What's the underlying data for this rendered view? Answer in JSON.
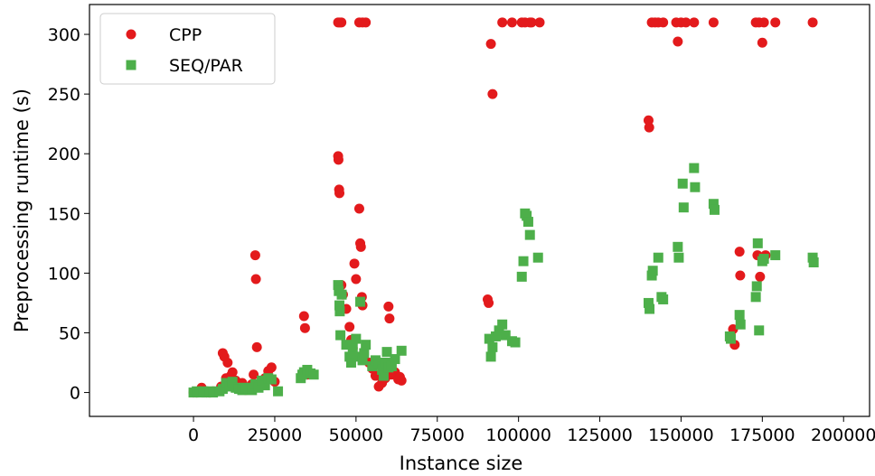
{
  "chart_data": {
    "type": "scatter",
    "title": "",
    "xlabel": "Instance size",
    "ylabel": "Preprocessing runtime (s)",
    "xlim": [
      -32000,
      208000
    ],
    "ylim": [
      -20,
      325
    ],
    "xticks": [
      0,
      25000,
      50000,
      75000,
      100000,
      125000,
      150000,
      175000,
      200000
    ],
    "yticks": [
      0,
      50,
      100,
      150,
      200,
      250,
      300
    ],
    "legend_position": "top-left",
    "grid": false,
    "series": [
      {
        "name": "CPP",
        "marker": "circle",
        "color": "#e31a1c",
        "points": [
          [
            0,
            0
          ],
          [
            1000,
            0
          ],
          [
            2000,
            1
          ],
          [
            2500,
            4
          ],
          [
            3000,
            1
          ],
          [
            4000,
            0
          ],
          [
            5000,
            0
          ],
          [
            6000,
            1
          ],
          [
            8000,
            2
          ],
          [
            8500,
            5
          ],
          [
            9000,
            33
          ],
          [
            9500,
            30
          ],
          [
            10000,
            12
          ],
          [
            10500,
            25
          ],
          [
            11000,
            8
          ],
          [
            11500,
            14
          ],
          [
            12000,
            17
          ],
          [
            12500,
            6
          ],
          [
            13000,
            10
          ],
          [
            14000,
            3
          ],
          [
            15000,
            8
          ],
          [
            16000,
            2
          ],
          [
            17000,
            3
          ],
          [
            18000,
            7
          ],
          [
            18500,
            15
          ],
          [
            19000,
            115
          ],
          [
            19200,
            95
          ],
          [
            19500,
            38
          ],
          [
            20000,
            6
          ],
          [
            21000,
            8
          ],
          [
            22000,
            12
          ],
          [
            23000,
            18
          ],
          [
            24000,
            21
          ],
          [
            25000,
            9
          ],
          [
            34000,
            64
          ],
          [
            34300,
            54
          ],
          [
            35000,
            15
          ],
          [
            44500,
            310
          ],
          [
            45000,
            310
          ],
          [
            45500,
            310
          ],
          [
            44500,
            198
          ],
          [
            44600,
            195
          ],
          [
            44800,
            170
          ],
          [
            44900,
            167
          ],
          [
            45500,
            90
          ],
          [
            46000,
            82
          ],
          [
            47000,
            70
          ],
          [
            48000,
            55
          ],
          [
            48500,
            44
          ],
          [
            49000,
            37
          ],
          [
            49500,
            108
          ],
          [
            50000,
            95
          ],
          [
            51000,
            310
          ],
          [
            52000,
            310
          ],
          [
            53000,
            310
          ],
          [
            51000,
            154
          ],
          [
            51300,
            125
          ],
          [
            51500,
            122
          ],
          [
            51800,
            80
          ],
          [
            52000,
            73
          ],
          [
            54000,
            25
          ],
          [
            55000,
            20
          ],
          [
            56000,
            14
          ],
          [
            57000,
            5
          ],
          [
            58000,
            8
          ],
          [
            59000,
            12
          ],
          [
            60000,
            72
          ],
          [
            60300,
            62
          ],
          [
            61000,
            15
          ],
          [
            62000,
            17
          ],
          [
            63000,
            11
          ],
          [
            63500,
            13
          ],
          [
            64000,
            10
          ],
          [
            90500,
            78
          ],
          [
            90800,
            75
          ],
          [
            91500,
            292
          ],
          [
            92000,
            250
          ],
          [
            95000,
            310
          ],
          [
            98000,
            310
          ],
          [
            101000,
            310
          ],
          [
            102000,
            310
          ],
          [
            103500,
            310
          ],
          [
            104000,
            310
          ],
          [
            106500,
            310
          ],
          [
            140000,
            228
          ],
          [
            140200,
            222
          ],
          [
            141000,
            310
          ],
          [
            142000,
            310
          ],
          [
            143000,
            310
          ],
          [
            144500,
            310
          ],
          [
            148500,
            310
          ],
          [
            149000,
            294
          ],
          [
            150000,
            310
          ],
          [
            151500,
            310
          ],
          [
            154000,
            310
          ],
          [
            160000,
            310
          ],
          [
            166000,
            53
          ],
          [
            166500,
            40
          ],
          [
            168000,
            118
          ],
          [
            168200,
            98
          ],
          [
            173000,
            310
          ],
          [
            173500,
            115
          ],
          [
            174000,
            310
          ],
          [
            174300,
            97
          ],
          [
            175000,
            293
          ],
          [
            175500,
            310
          ],
          [
            176000,
            115
          ],
          [
            179000,
            310
          ],
          [
            190500,
            310
          ]
        ]
      },
      {
        "name": "SEQ/PAR",
        "marker": "square",
        "color": "#4daf4a",
        "points": [
          [
            0,
            0
          ],
          [
            1000,
            1
          ],
          [
            2000,
            0
          ],
          [
            3000,
            1
          ],
          [
            4000,
            0
          ],
          [
            5000,
            1
          ],
          [
            6000,
            0
          ],
          [
            8000,
            1
          ],
          [
            9000,
            3
          ],
          [
            10000,
            8
          ],
          [
            11000,
            5
          ],
          [
            12000,
            9
          ],
          [
            13000,
            4
          ],
          [
            14000,
            3
          ],
          [
            15000,
            2
          ],
          [
            16000,
            4
          ],
          [
            17000,
            3
          ],
          [
            18000,
            2
          ],
          [
            19000,
            7
          ],
          [
            20000,
            4
          ],
          [
            21000,
            10
          ],
          [
            22000,
            6
          ],
          [
            23000,
            12
          ],
          [
            24000,
            11
          ],
          [
            26000,
            1
          ],
          [
            33000,
            12
          ],
          [
            33500,
            15
          ],
          [
            34000,
            17
          ],
          [
            35000,
            19
          ],
          [
            36000,
            16
          ],
          [
            37000,
            15
          ],
          [
            44500,
            90
          ],
          [
            44700,
            85
          ],
          [
            44900,
            73
          ],
          [
            45000,
            68
          ],
          [
            45200,
            48
          ],
          [
            45600,
            82
          ],
          [
            47000,
            40
          ],
          [
            48000,
            30
          ],
          [
            48500,
            25
          ],
          [
            49000,
            38
          ],
          [
            50000,
            45
          ],
          [
            51000,
            30
          ],
          [
            51300,
            76
          ],
          [
            52000,
            27
          ],
          [
            52500,
            33
          ],
          [
            53000,
            40
          ],
          [
            55000,
            22
          ],
          [
            56000,
            27
          ],
          [
            57000,
            24
          ],
          [
            58000,
            19
          ],
          [
            58500,
            14
          ],
          [
            59000,
            25
          ],
          [
            59500,
            34
          ],
          [
            60000,
            21
          ],
          [
            61000,
            22
          ],
          [
            62000,
            28
          ],
          [
            64000,
            35
          ],
          [
            91000,
            45
          ],
          [
            91500,
            30
          ],
          [
            92000,
            38
          ],
          [
            93000,
            47
          ],
          [
            94000,
            52
          ],
          [
            95000,
            57
          ],
          [
            96000,
            48
          ],
          [
            98000,
            43
          ],
          [
            99000,
            42
          ],
          [
            101000,
            97
          ],
          [
            101500,
            110
          ],
          [
            102000,
            150
          ],
          [
            102500,
            148
          ],
          [
            103000,
            143
          ],
          [
            103500,
            132
          ],
          [
            106000,
            113
          ],
          [
            140000,
            75
          ],
          [
            140300,
            70
          ],
          [
            141000,
            98
          ],
          [
            141300,
            102
          ],
          [
            143000,
            113
          ],
          [
            144000,
            80
          ],
          [
            144500,
            78
          ],
          [
            149000,
            122
          ],
          [
            149300,
            113
          ],
          [
            150500,
            175
          ],
          [
            150800,
            155
          ],
          [
            154000,
            188
          ],
          [
            154300,
            172
          ],
          [
            160000,
            158
          ],
          [
            160300,
            153
          ],
          [
            165000,
            47
          ],
          [
            165300,
            45
          ],
          [
            168000,
            65
          ],
          [
            168300,
            57
          ],
          [
            173000,
            80
          ],
          [
            173300,
            89
          ],
          [
            173600,
            125
          ],
          [
            174000,
            52
          ],
          [
            175000,
            110
          ],
          [
            175500,
            112
          ],
          [
            179000,
            115
          ],
          [
            190500,
            113
          ],
          [
            190800,
            109
          ]
        ]
      }
    ]
  }
}
